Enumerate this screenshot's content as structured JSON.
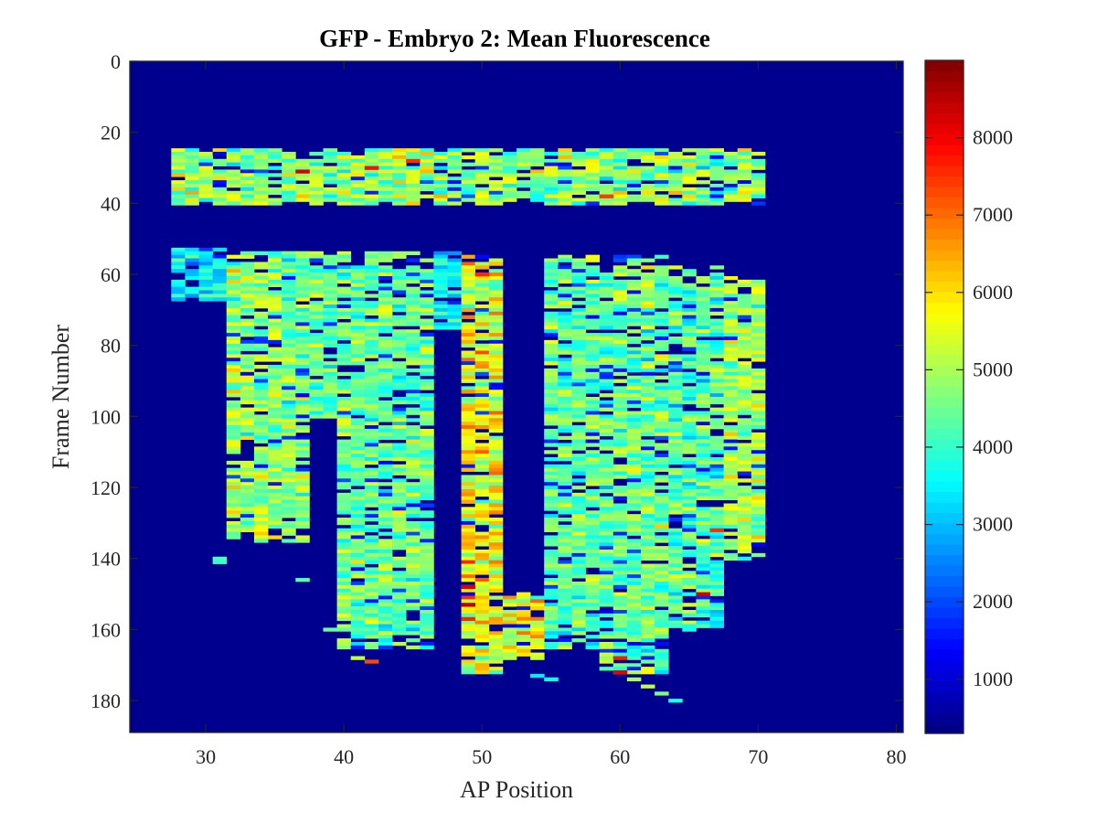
{
  "chart_data": {
    "type": "heatmap",
    "title": "GFP - Embryo 2: Mean Fluorescence",
    "xlabel": "AP Position",
    "ylabel": "Frame Number",
    "xlim": [
      24.5,
      80.5
    ],
    "ylim": [
      0,
      189
    ],
    "y_reversed": true,
    "x_ticks": [
      30,
      40,
      50,
      60,
      70,
      80
    ],
    "y_ticks": [
      0,
      20,
      40,
      60,
      80,
      100,
      120,
      140,
      160,
      180
    ],
    "colormap": "jet",
    "background_color": "#00008f",
    "colorbar": {
      "min": 300,
      "max": 9000,
      "ticks": [
        1000,
        2000,
        3000,
        4000,
        5000,
        6000,
        7000,
        8000
      ]
    },
    "bands": [
      {
        "x0": 28,
        "x1": 70,
        "y0": 25,
        "y1": 40,
        "level": 4800,
        "spread": 1500
      },
      {
        "x0": 28,
        "x1": 31,
        "y0": 53,
        "y1": 67,
        "level": 3600,
        "spread": 900
      },
      {
        "x0": 32,
        "x1": 37,
        "y0": 54,
        "y1": 135,
        "level": 4800,
        "spread": 1300
      },
      {
        "x0": 36,
        "x1": 39,
        "y0": 54,
        "y1": 100,
        "level": 4300,
        "spread": 1100
      },
      {
        "x0": 40,
        "x1": 46,
        "y0": 54,
        "y1": 165,
        "level": 4400,
        "spread": 1200
      },
      {
        "x0": 47,
        "x1": 48,
        "y0": 54,
        "y1": 75,
        "level": 3500,
        "spread": 900
      },
      {
        "x0": 49,
        "x1": 51,
        "y0": 55,
        "y1": 172,
        "level": 5600,
        "spread": 1500
      },
      {
        "x0": 52,
        "x1": 54,
        "y0": 150,
        "y1": 168,
        "level": 5600,
        "spread": 1400
      },
      {
        "x0": 55,
        "x1": 58,
        "y0": 55,
        "y1": 165,
        "level": 4400,
        "spread": 1100
      },
      {
        "x0": 59,
        "x1": 63,
        "y0": 55,
        "y1": 172,
        "level": 4500,
        "spread": 1300
      },
      {
        "x0": 64,
        "x1": 67,
        "y0": 58,
        "y1": 160,
        "level": 4300,
        "spread": 1300
      },
      {
        "x0": 68,
        "x1": 70,
        "y0": 60,
        "y1": 140,
        "level": 4900,
        "spread": 1200
      }
    ],
    "hotspots": [
      {
        "x": 37,
        "y": 31,
        "value": 8200
      },
      {
        "x": 42,
        "y": 30,
        "value": 7800
      },
      {
        "x": 45,
        "y": 28,
        "value": 7500
      },
      {
        "x": 49,
        "y": 148,
        "value": 8200
      },
      {
        "x": 49,
        "y": 153,
        "value": 8500
      },
      {
        "x": 49,
        "y": 157,
        "value": 7600
      },
      {
        "x": 60,
        "y": 168,
        "value": 7700
      },
      {
        "x": 60,
        "y": 172,
        "value": 8100
      },
      {
        "x": 66,
        "y": 150,
        "value": 8300
      },
      {
        "x": 67,
        "y": 132,
        "value": 7500
      },
      {
        "x": 50,
        "y": 60,
        "value": 7600
      },
      {
        "x": 59,
        "y": 38,
        "value": 7400
      }
    ],
    "tails": [
      {
        "x": 61,
        "y": 174,
        "value": 5000
      },
      {
        "x": 62,
        "y": 176,
        "value": 5200
      },
      {
        "x": 63,
        "y": 178,
        "value": 4600
      },
      {
        "x": 64,
        "y": 180,
        "value": 3800
      },
      {
        "x": 55,
        "y": 174,
        "value": 3600
      },
      {
        "x": 54,
        "y": 173,
        "value": 3400
      },
      {
        "x": 31,
        "y": 140,
        "value": 4200
      },
      {
        "x": 31,
        "y": 141,
        "value": 4000
      },
      {
        "x": 37,
        "y": 146,
        "value": 4300
      },
      {
        "x": 39,
        "y": 160,
        "value": 4400
      },
      {
        "x": 42,
        "y": 169,
        "value": 7300
      },
      {
        "x": 41,
        "y": 168,
        "value": 5200
      }
    ]
  }
}
